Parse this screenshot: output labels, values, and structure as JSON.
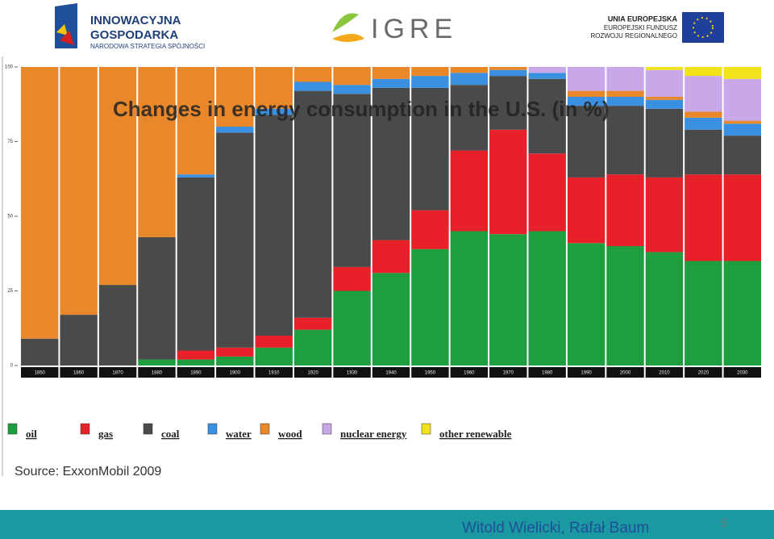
{
  "header": {
    "left_logo_line1": "INNOWACYJNA",
    "left_logo_line2": "GOSPODARKA",
    "left_logo_line3": "NARODOWA STRATEGIA SPÓJNOŚCI",
    "center_logo": "IGRE",
    "right_logo_line1": "UNIA EUROPEJSKA",
    "right_logo_line2": "EUROPEJSKI FUNDUSZ",
    "right_logo_line3": "ROZWOJU REGIONALNEGO"
  },
  "chart_data": {
    "type": "stacked-bar",
    "title": "Changes in energy consumption in the U.S. (in %)",
    "categories": [
      "1850",
      "1860",
      "1870",
      "1880",
      "1890",
      "1900",
      "1910",
      "1920",
      "1930",
      "1940",
      "1950",
      "1960",
      "1970",
      "1980",
      "1990",
      "2000",
      "2010",
      "2020",
      "2030"
    ],
    "series": [
      {
        "name": "oil",
        "color": "#1e9e3e",
        "values": [
          0,
          0,
          0,
          2,
          2,
          3,
          6,
          12,
          25,
          31,
          39,
          45,
          44,
          45,
          41,
          40,
          38,
          35,
          35
        ]
      },
      {
        "name": "gas",
        "color": "#e8202a",
        "values": [
          0,
          0,
          0,
          0,
          3,
          3,
          4,
          4,
          8,
          11,
          13,
          27,
          35,
          26,
          22,
          24,
          25,
          29,
          29
        ]
      },
      {
        "name": "coal",
        "color": "#4a4a4a",
        "values": [
          9,
          17,
          27,
          41,
          58,
          72,
          74,
          76,
          58,
          51,
          41,
          22,
          18,
          25,
          24,
          23,
          23,
          15,
          13
        ]
      },
      {
        "name": "water",
        "color": "#3a8fe0",
        "values": [
          0,
          0,
          0,
          0,
          1,
          2,
          2,
          3,
          3,
          3,
          4,
          4,
          2,
          2,
          3,
          3,
          3,
          4,
          4
        ]
      },
      {
        "name": "wood",
        "color": "#e8882b",
        "values": [
          91,
          83,
          73,
          57,
          36,
          20,
          14,
          5,
          6,
          4,
          3,
          2,
          1,
          0,
          2,
          2,
          1,
          2,
          1
        ]
      },
      {
        "name": "nuclear energy",
        "color": "#c8a8e8",
        "values": [
          0,
          0,
          0,
          0,
          0,
          0,
          0,
          0,
          0,
          0,
          0,
          0,
          0,
          2,
          8,
          8,
          9,
          12,
          14
        ]
      },
      {
        "name": "other renewable",
        "color": "#f2e21a",
        "values": [
          0,
          0,
          0,
          0,
          0,
          0,
          0,
          0,
          0,
          0,
          0,
          0,
          0,
          0,
          0,
          0,
          1,
          3,
          4
        ]
      }
    ],
    "ylim": [
      0,
      100
    ],
    "yticks": [
      0,
      25,
      50,
      75,
      100
    ]
  },
  "source": "Source: ExxonMobil 2009",
  "footer": {
    "authors": "Witold Wielicki, Rafał Baum",
    "page": "5"
  }
}
